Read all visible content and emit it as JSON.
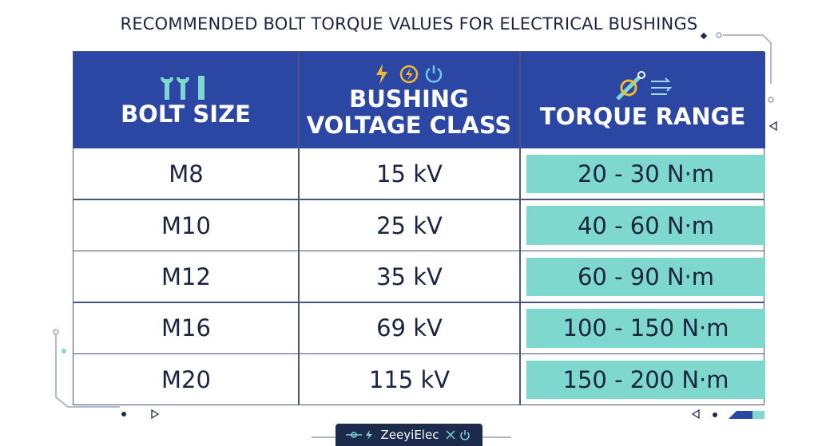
{
  "title": "RECOMMENDED BOLT TORQUE VALUES FOR ELECTRICAL BUSHINGS",
  "table": {
    "headers": [
      "BOLT SIZE",
      "BUSHING VOLTAGE CLASS",
      "TORQUE RANGE"
    ],
    "rows": [
      [
        "M8",
        "15 kV",
        "20 - 30 N·m"
      ],
      [
        "M10",
        "25 kV",
        "40 - 60 N·m"
      ],
      [
        "M12",
        "35 kV",
        "60 - 90 N·m"
      ],
      [
        "M16",
        "69 kV",
        "100 - 150 N·m"
      ],
      [
        "M20",
        "115 kV",
        "150 - 200 N·m"
      ]
    ]
  },
  "footer": {
    "brand": "ZeeyiElec"
  }
}
